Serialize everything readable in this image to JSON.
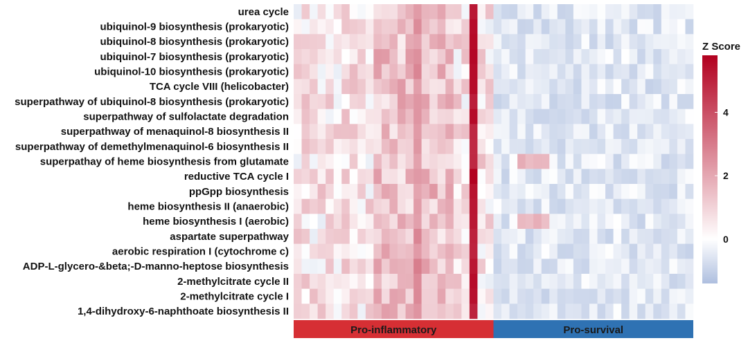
{
  "chart_data": {
    "type": "heatmap",
    "title": "",
    "rows": [
      "urea cycle",
      "ubiquinol-9 biosynthesis (prokaryotic)",
      "ubiquinol-8 biosynthesis (prokaryotic)",
      "ubiquinol-7 biosynthesis (prokaryotic)",
      "ubiquinol-10 biosynthesis (prokaryotic)",
      "TCA cycle VIII (helicobacter)",
      "superpathway of ubiquinol-8 biosynthesis (prokaryotic)",
      "superpathway of sulfolactate degradation",
      "superpathway of menaquinol-8 biosynthesis II",
      "superpathway of demethylmenaquinol-6 biosynthesis II",
      "superpathay of heme biosynthesis from glutamate",
      "reductive TCA cycle I",
      "ppGpp biosynthesis",
      "heme biosynthesis II (anaerobic)",
      "heme biosynthesis I (aerobic)",
      "aspartate superpathway",
      "aerobic respiration I (cytochrome c)",
      "ADP-L-glycero-&beta;-D-manno-heptose biosynthesis",
      "2-methylcitrate cycle II",
      "2-methylcitrate cycle I",
      "1,4-dihydroxy-6-naphthoate biosynthesis II"
    ],
    "n_columns": 50,
    "groups": [
      {
        "name": "Pro-inflammatory",
        "columns": 25,
        "color": "#d62f34"
      },
      {
        "name": "Pro-survival",
        "columns": 25,
        "color": "#2f72b3"
      }
    ],
    "strong_columns": [
      {
        "index": 15,
        "value": 3.0
      },
      {
        "index": 22,
        "value": 5.8
      }
    ],
    "pro_inflammatory_baseline": 0.6,
    "pro_survival_baseline": -0.5,
    "legend": {
      "title": "Z Score",
      "min": -1.4,
      "max": 5.8,
      "ticks": [
        0,
        2,
        4
      ],
      "colors": [
        "#aebfdf",
        "#ffffff",
        "#b2001f"
      ]
    }
  }
}
